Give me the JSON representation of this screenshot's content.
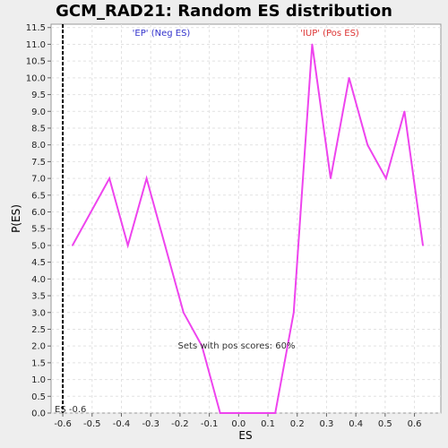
{
  "chart_data": {
    "type": "line",
    "title": "GCM_RAD21: Random ES distribution",
    "xlabel": "ES",
    "ylabel": "P(ES)",
    "xlim": [
      -0.64,
      0.69
    ],
    "ylim": [
      0,
      11.6
    ],
    "x_ticks": [
      "-0.6",
      "-0.5",
      "-0.4",
      "-0.3",
      "-0.2",
      "-0.1",
      "0.0",
      "0.1",
      "0.2",
      "0.3",
      "0.4",
      "0.5",
      "0.6"
    ],
    "y_ticks": [
      "0.0",
      "0.5",
      "1.0",
      "1.5",
      "2.0",
      "2.5",
      "3.0",
      "3.5",
      "4.0",
      "4.5",
      "5.0",
      "5.5",
      "6.0",
      "6.5",
      "7.0",
      "7.5",
      "8.0",
      "8.5",
      "9.0",
      "9.5",
      "10.0",
      "10.5",
      "11.0",
      "11.5"
    ],
    "grid": true,
    "series": [
      {
        "color": "#ee44ee",
        "x": [
          -0.567,
          -0.441,
          -0.378,
          -0.314,
          -0.251,
          -0.188,
          -0.125,
          -0.063,
          0.0,
          0.063,
          0.125,
          0.188,
          0.251,
          0.314,
          0.377,
          0.44,
          0.503,
          0.566,
          0.629
        ],
        "y": [
          5.0,
          7.0,
          5.0,
          7.0,
          5.0,
          3.0,
          2.0,
          0.0,
          0.0,
          0.0,
          0.0,
          3.0,
          11.0,
          7.0,
          10.0,
          8.0,
          7.0,
          9.0,
          5.0
        ]
      }
    ],
    "marker": {
      "x": -0.6,
      "label": "ES -0.6"
    },
    "annotations": {
      "neg": {
        "text": "'EP' (Neg ES)",
        "color": "#3333cc"
      },
      "pos": {
        "text": "'IUP' (Pos ES)",
        "color": "#dd3333"
      },
      "pos_scores": "Sets with pos scores: 60%"
    }
  }
}
